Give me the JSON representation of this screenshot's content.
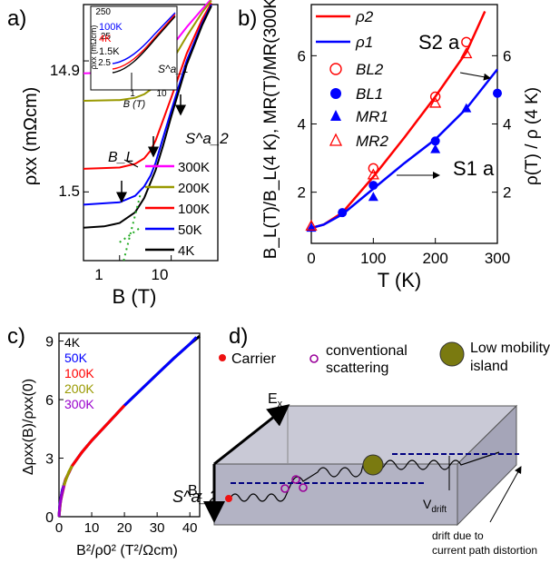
{
  "panel_letters": [
    "a)",
    "b)",
    "c)",
    "d)"
  ],
  "chart_data": [
    {
      "panel": "a",
      "type": "line",
      "xlabel": "B (T)",
      "ylabel": "ρxx (mΩcm)",
      "xscale": "log",
      "yscale": "log",
      "xlim": [
        0.2,
        80
      ],
      "ylim": [
        0.45,
        40
      ],
      "xticks": [
        "1",
        "10"
      ],
      "yticks": [
        "1.5",
        "14.9"
      ],
      "sample_label": "S^a_2",
      "annotations": [
        "B_L"
      ],
      "series": [
        {
          "name": "300K",
          "color": "#ff00ff",
          "x": [
            0.2,
            1,
            2,
            3,
            4,
            5,
            7,
            10,
            20,
            40,
            60
          ],
          "y": [
            12.0,
            12.2,
            12.6,
            13.2,
            14.0,
            14.8,
            16.5,
            19.0,
            27.0,
            37.0,
            44.0
          ]
        },
        {
          "name": "200K",
          "color": "#999900",
          "x": [
            0.2,
            1,
            2,
            3,
            4,
            5,
            7,
            10,
            20,
            40,
            60
          ],
          "y": [
            7.4,
            7.5,
            7.8,
            8.3,
            9.0,
            9.8,
            11.8,
            14.5,
            23.0,
            35.0,
            43.0
          ]
        },
        {
          "name": "100K",
          "color": "#ff0000",
          "x": [
            0.2,
            1,
            2,
            3,
            4,
            5,
            7,
            10,
            20,
            40,
            60
          ],
          "y": [
            2.25,
            2.3,
            2.45,
            2.7,
            3.1,
            3.7,
            5.3,
            7.8,
            17.0,
            31.0,
            41.0
          ]
        },
        {
          "name": "50K",
          "color": "#0000ff",
          "x": [
            0.2,
            1,
            2,
            3,
            4,
            5,
            7,
            10,
            20,
            40,
            60
          ],
          "y": [
            1.2,
            1.25,
            1.4,
            1.65,
            2.0,
            2.5,
            3.9,
            6.2,
            15.0,
            29.0,
            40.0
          ]
        },
        {
          "name": "4K",
          "color": "#000000",
          "x": [
            0.2,
            0.5,
            1,
            2,
            3,
            5,
            7,
            10,
            20,
            40,
            60
          ],
          "y": [
            0.8,
            0.82,
            0.87,
            1.05,
            1.35,
            2.2,
            3.4,
            5.6,
            14.0,
            28.0,
            39.0
          ]
        }
      ],
      "inset": {
        "xlabel": "B (T)",
        "ylabel": "ρxx (mΩcm)",
        "xticks": [
          "1",
          "10"
        ],
        "yticks": [
          "2.5",
          "25",
          "250"
        ],
        "legend": [
          "100K",
          "4K",
          "1.5K"
        ],
        "legend_colors": [
          "#0000ff",
          "#ff0000",
          "#000000"
        ],
        "sample_label": "S^a_1"
      }
    },
    {
      "panel": "b",
      "type": "line",
      "xlabel": "T (K)",
      "ylabel_left": "B_L(T)/B_L(4 K), MR(T)/MR(300K)",
      "ylabel_right": "ρ(T) / ρ (4 K)",
      "xlim": [
        0,
        300
      ],
      "ylim": [
        0.5,
        7.5
      ],
      "xticks": [
        0,
        100,
        200,
        300
      ],
      "yticks_left": [
        2,
        4,
        6
      ],
      "yticks_right": [
        2,
        4,
        6
      ],
      "series": [
        {
          "name": "ρ2",
          "style": "line",
          "color": "#ff0000",
          "x": [
            0,
            20,
            50,
            100,
            150,
            200,
            250,
            280
          ],
          "y": [
            0.95,
            1.05,
            1.4,
            2.45,
            3.6,
            4.8,
            6.1,
            7.3
          ]
        },
        {
          "name": "ρ1",
          "style": "line",
          "color": "#0000ff",
          "x": [
            0,
            20,
            50,
            100,
            150,
            200,
            250,
            300
          ],
          "y": [
            0.95,
            1.05,
            1.35,
            2.1,
            2.85,
            3.55,
            4.45,
            5.6
          ]
        },
        {
          "name": "BL2",
          "style": "open-circle",
          "color": "#ff0000",
          "x": [
            100,
            200,
            250
          ],
          "y": [
            2.7,
            4.8,
            6.4
          ]
        },
        {
          "name": "BL1",
          "style": "filled-circle",
          "color": "#0000ff",
          "x": [
            50,
            100,
            200,
            300
          ],
          "y": [
            1.4,
            2.2,
            3.5,
            4.9
          ]
        },
        {
          "name": "MR1",
          "style": "filled-triangle",
          "color": "#0000ff",
          "x": [
            0,
            100,
            200,
            250
          ],
          "y": [
            0.95,
            1.85,
            3.25,
            4.45
          ]
        },
        {
          "name": "MR2",
          "style": "open-triangle",
          "color": "#ff0000",
          "x": [
            0,
            100,
            200,
            250
          ],
          "y": [
            1.0,
            2.5,
            4.6,
            6.05
          ]
        }
      ],
      "sample_labels": [
        "S2 a",
        "S1 a"
      ]
    },
    {
      "panel": "c",
      "type": "line",
      "xlabel": "B²/ρ0² (T²/Ωcm)",
      "ylabel": "Δρxx(B)/ρxx(0)",
      "xlim": [
        0,
        43
      ],
      "ylim": [
        0,
        9.4
      ],
      "xticks": [
        0,
        10,
        20,
        30,
        40
      ],
      "yticks": [
        0,
        3,
        6,
        9
      ],
      "sample_label": "S^a_2",
      "series": [
        {
          "name": "4K",
          "color": "#000000",
          "x": [
            0,
            0.3,
            1,
            2,
            4,
            7,
            10,
            15,
            20,
            25,
            30,
            35,
            40,
            43
          ],
          "y": [
            0,
            0.7,
            1.35,
            1.9,
            2.6,
            3.3,
            3.9,
            4.8,
            5.7,
            6.5,
            7.3,
            8.1,
            8.85,
            9.25
          ]
        },
        {
          "name": "50K",
          "color": "#0000ff",
          "x": [
            0,
            0.3,
            1,
            2,
            4,
            7,
            10,
            15,
            20,
            25,
            30,
            35,
            40,
            42
          ],
          "y": [
            0,
            0.7,
            1.35,
            1.9,
            2.6,
            3.3,
            3.9,
            4.8,
            5.7,
            6.5,
            7.3,
            8.1,
            8.85,
            9.2
          ]
        },
        {
          "name": "100K",
          "color": "#ff0000",
          "x": [
            0,
            0.5,
            2,
            4,
            7,
            10,
            15,
            20
          ],
          "y": [
            0,
            0.8,
            1.9,
            2.6,
            3.3,
            3.9,
            4.8,
            5.7
          ]
        },
        {
          "name": "200K",
          "color": "#999900",
          "x": [
            0,
            0.5,
            1.5,
            3,
            4
          ],
          "y": [
            0,
            0.8,
            1.6,
            2.3,
            2.6
          ]
        },
        {
          "name": "300K",
          "color": "#9900cc",
          "x": [
            0,
            0.3,
            0.8,
            1.5
          ],
          "y": [
            0,
            0.6,
            1.1,
            1.6
          ]
        }
      ]
    }
  ],
  "panel_d": {
    "legend": {
      "carrier": "Carrier",
      "scattering_1": "conventional",
      "scattering_2": "scattering",
      "island_1": "Low mobility",
      "island_2": "island"
    },
    "labels": {
      "ex": "E",
      "ex_sub": "x",
      "bz": "B",
      "bz_sub": "z",
      "vdrift": "V",
      "vdrift_sub": "drift",
      "note_1": "drift due to",
      "note_2": "current path distortion"
    },
    "colors": {
      "carrier": "#ee1111",
      "scattering": "#990099",
      "island": "#7a7a10",
      "slab": "#b8b8c8",
      "drift": "#000080"
    }
  }
}
